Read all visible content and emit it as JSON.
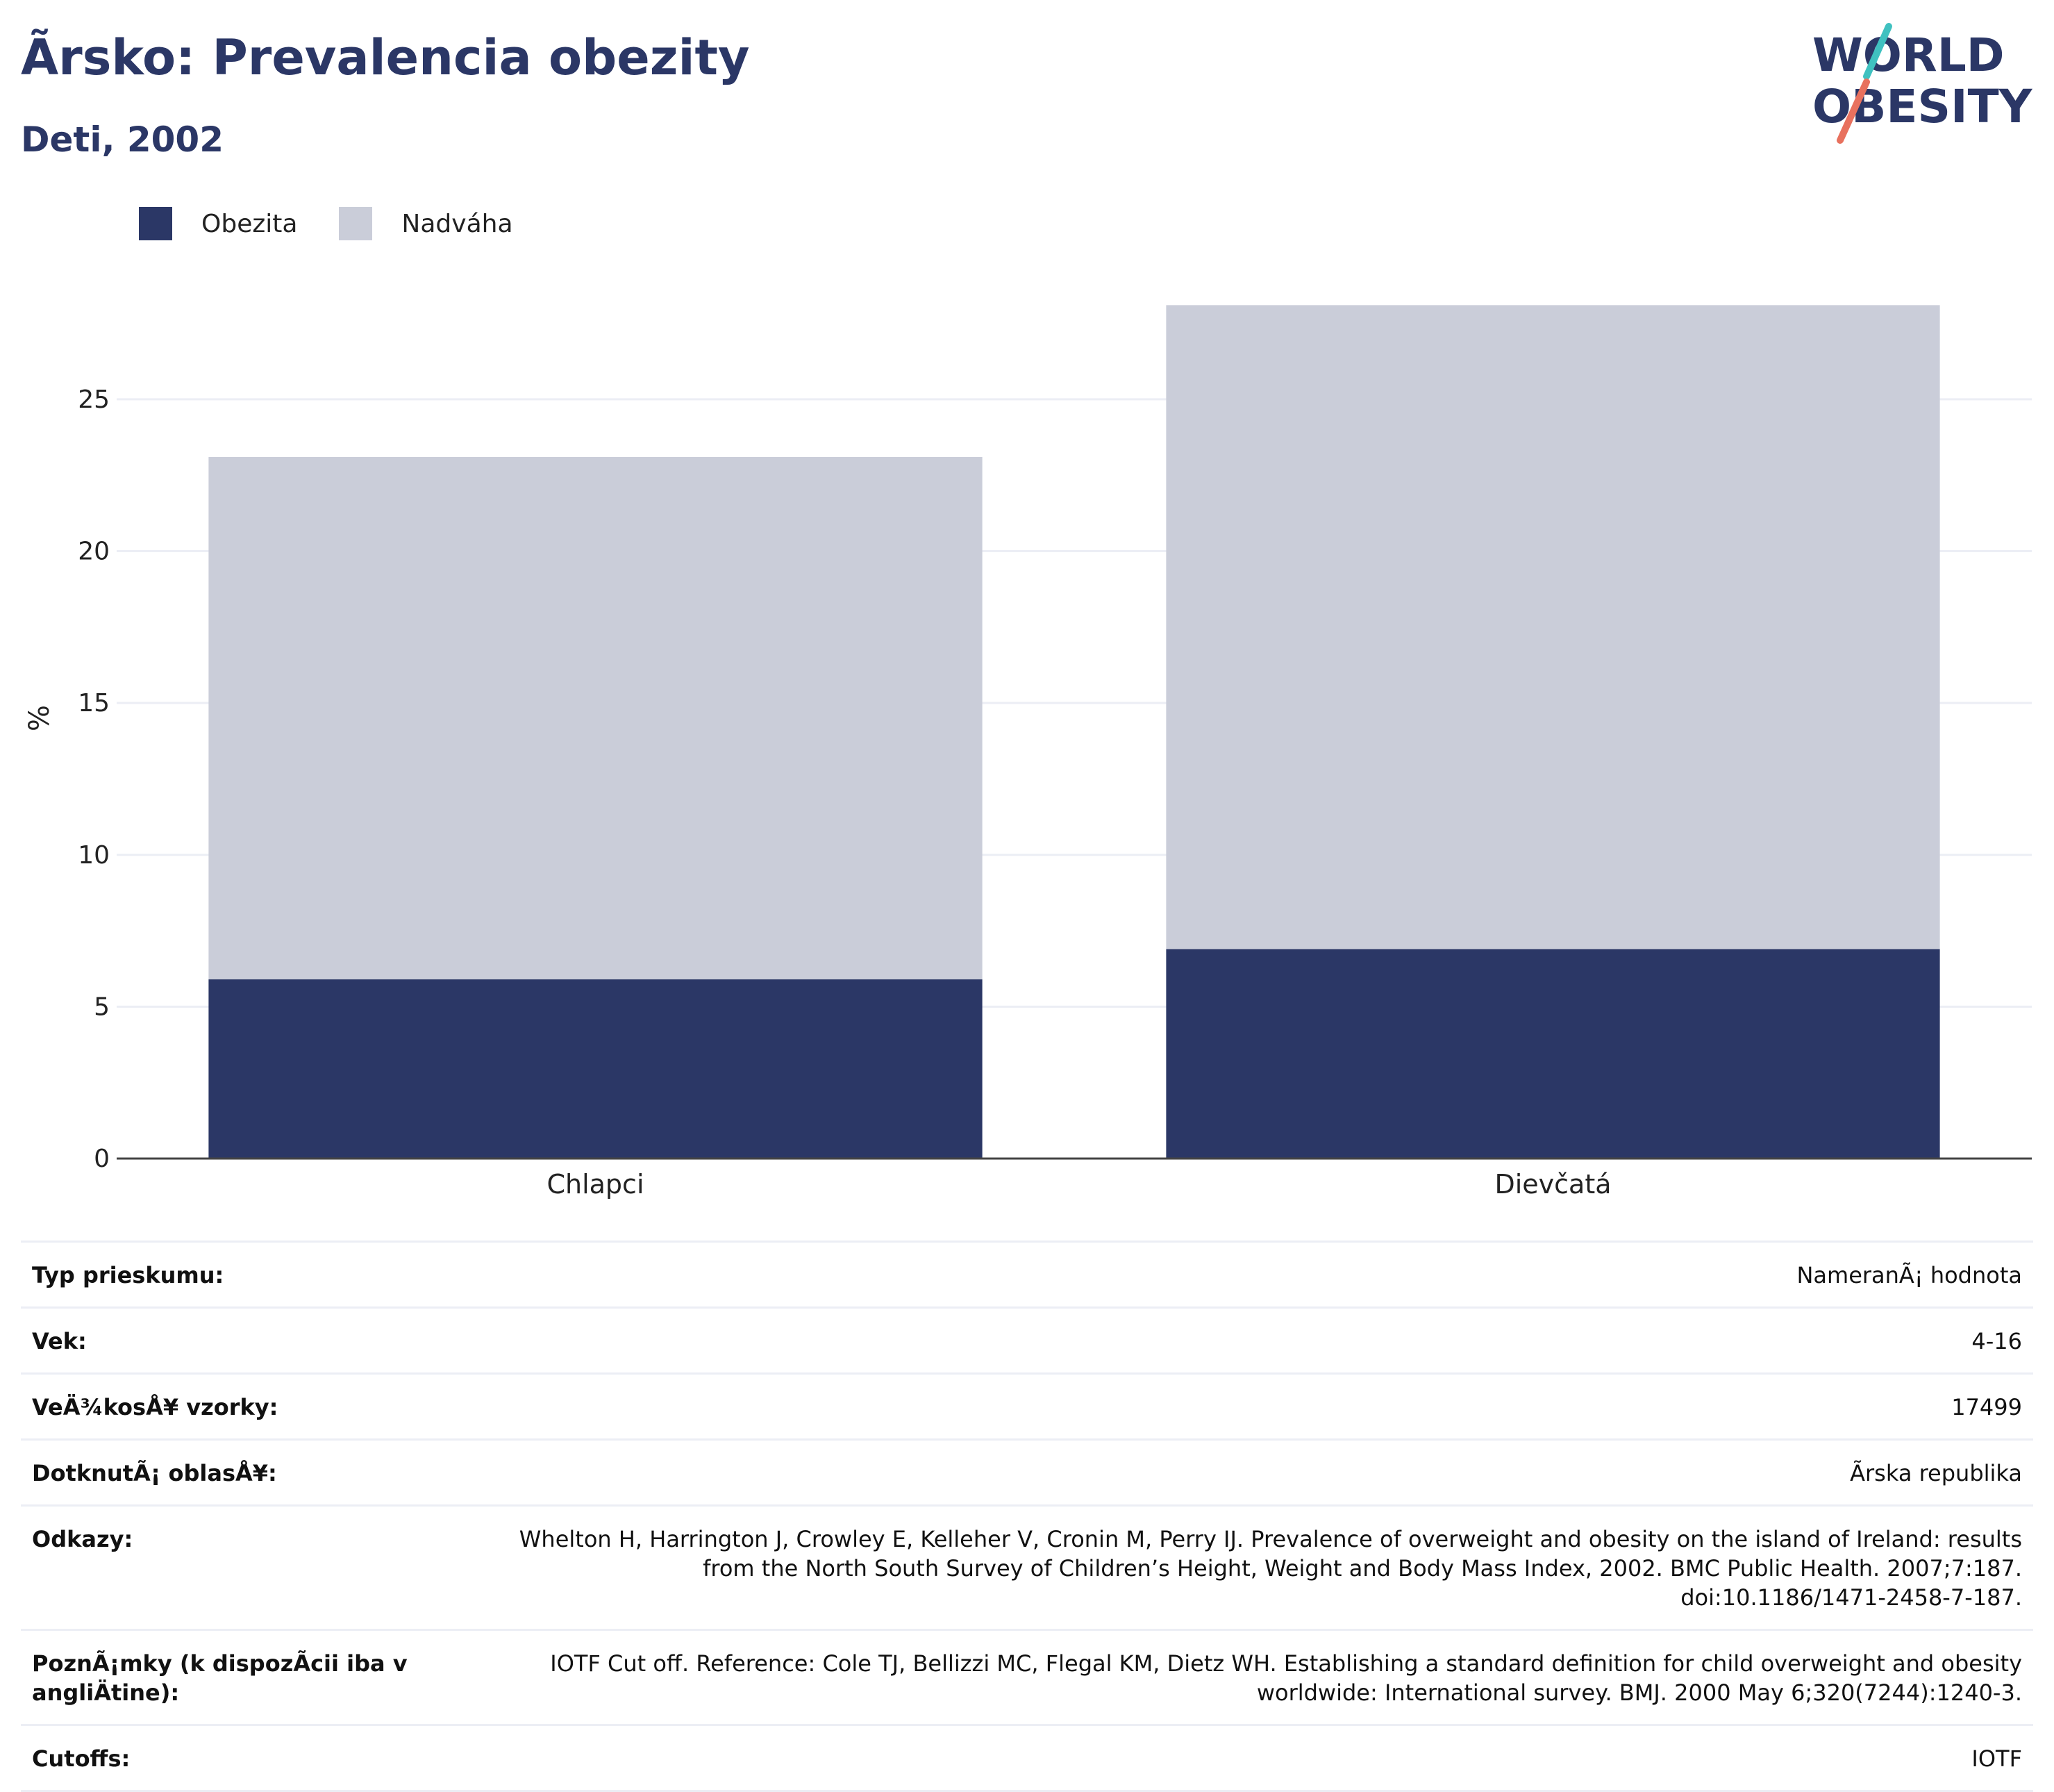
{
  "header": {
    "title": "Ã­rsko: Prevalencia obezity",
    "subtitle": "Deti, 2002"
  },
  "logo": {
    "line1": "WORLD",
    "line2": "OBESITY",
    "slash_colors": [
      "#3fc1c0",
      "#e8715e"
    ],
    "text_color": "#2b3766"
  },
  "colors": {
    "obesity": "#2b3766",
    "overweight": "#cacdd9",
    "grid": "#eceef5",
    "axis": "#444444"
  },
  "legend": {
    "items": [
      {
        "label": "Obezita",
        "color": "#2b3766"
      },
      {
        "label": "Nadváha",
        "color": "#cacdd9"
      }
    ]
  },
  "chart_data": {
    "type": "bar",
    "stacked": true,
    "categories": [
      "Chlapci",
      "Dievčatá"
    ],
    "series": [
      {
        "name": "Obezita",
        "values": [
          5.9,
          6.9
        ]
      },
      {
        "name": "Nadváha",
        "values": [
          17.2,
          21.2
        ]
      }
    ],
    "ylabel": "%",
    "ylim": [
      0,
      29
    ],
    "yticks": [
      0,
      5,
      10,
      15,
      20,
      25
    ],
    "grid": true,
    "legend": "top-left"
  },
  "info": [
    {
      "key": "Typ prieskumu:",
      "value": "NameranÃ¡ hodnota"
    },
    {
      "key": "Vek:",
      "value": "4-16"
    },
    {
      "key": "VeÄ¾kosÅ¥ vzorky:",
      "value": "17499"
    },
    {
      "key": "DotknutÃ¡ oblasÅ¥:",
      "value": "Ã­rska republika"
    },
    {
      "key": "Odkazy:",
      "value": "Whelton H, Harrington J, Crowley E, Kelleher V, Cronin M, Perry IJ. Prevalence of overweight and obesity on the island of Ireland: results from the North South Survey of Children’s Height, Weight and Body Mass Index, 2002. BMC Public Health. 2007;7:187. doi:10.1186/1471-2458-7-187."
    },
    {
      "key": "PoznÃ¡mky (k dispozÃ­cii iba v angliÄ­tine):",
      "value": "IOTF Cut off. Reference: Cole TJ, Bellizzi MC, Flegal KM, Dietz WH. Establishing a standard definition for child overweight and obesity worldwide: International survey. BMJ. 2000 May 6;320(7244):1240-3."
    },
    {
      "key": "Cutoffs:",
      "value": "IOTF"
    }
  ]
}
